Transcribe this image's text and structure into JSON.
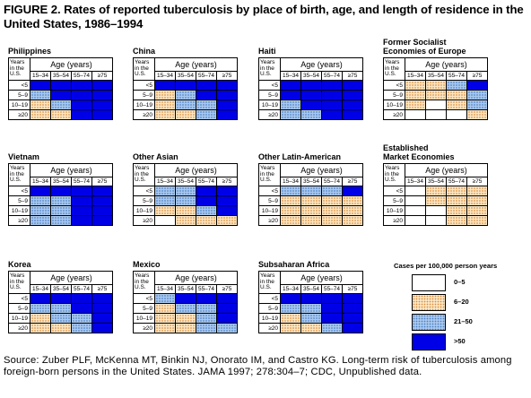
{
  "title": "FIGURE 2. Rates of reported tuberculosis by place of birth, age, and length of residence in the United States, 1986–1994",
  "source": "Source: Zuber PLF, McKenna MT, Binkin NJ, Onorato IM, and Castro KG. Long-term risk of tuberculosis among foreign-born persons in the United States. JAMA 1997; 278:304–7; CDC, Unpublished data.",
  "labels": {
    "years_in_us": "Years in the U.S.",
    "age_header": "Age (years)",
    "age_groups": [
      "15–34",
      "35–54",
      "55–74",
      "≥75"
    ],
    "residence_groups": [
      "<5",
      "5–9",
      "10–19",
      "≥20"
    ]
  },
  "legend": {
    "title": "Cases per 100,000 person years",
    "items": [
      {
        "label": "0–5",
        "level": 0
      },
      {
        "label": "6–20",
        "level": 1
      },
      {
        "label": "21–50",
        "level": 2
      },
      {
        "label": ">50",
        "level": 3
      }
    ]
  },
  "colors": {
    "level_0": "#ffffff",
    "level_1": "#fbe6c4",
    "level_2": "#a9c8ee",
    "level_3": "#0000e6"
  },
  "chart_data": {
    "type": "heatmap",
    "x": [
      "15–34",
      "35–54",
      "55–74",
      "≥75"
    ],
    "y": [
      "<5",
      "5–9",
      "10–19",
      "≥20"
    ],
    "xlabel": "Age (years)",
    "ylabel": "Years in the U.S.",
    "levels": [
      "0–5",
      "6–20",
      "21–50",
      ">50"
    ],
    "panels": [
      {
        "name": "Philippines",
        "values": [
          [
            3,
            3,
            3,
            3
          ],
          [
            2,
            3,
            3,
            3
          ],
          [
            1,
            2,
            3,
            3
          ],
          [
            1,
            1,
            3,
            3
          ]
        ]
      },
      {
        "name": "China",
        "values": [
          [
            3,
            3,
            3,
            3
          ],
          [
            1,
            2,
            3,
            3
          ],
          [
            1,
            2,
            2,
            3
          ],
          [
            1,
            1,
            2,
            3
          ]
        ]
      },
      {
        "name": "Haiti",
        "values": [
          [
            3,
            3,
            3,
            3
          ],
          [
            3,
            3,
            3,
            3
          ],
          [
            2,
            3,
            3,
            3
          ],
          [
            2,
            2,
            3,
            3
          ]
        ]
      },
      {
        "name": "Former Socialist\nEconomies of Europe",
        "values": [
          [
            1,
            1,
            2,
            3
          ],
          [
            1,
            1,
            1,
            2
          ],
          [
            1,
            0,
            1,
            2
          ],
          [
            0,
            0,
            0,
            1
          ]
        ]
      },
      {
        "name": "Vietnam",
        "values": [
          [
            3,
            3,
            3,
            3
          ],
          [
            2,
            2,
            3,
            3
          ],
          [
            2,
            2,
            3,
            3
          ],
          [
            2,
            2,
            3,
            3
          ]
        ]
      },
      {
        "name": "Other Asian",
        "values": [
          [
            2,
            2,
            3,
            3
          ],
          [
            2,
            2,
            3,
            3
          ],
          [
            1,
            1,
            2,
            3
          ],
          [
            0,
            1,
            1,
            1
          ]
        ]
      },
      {
        "name": "Other Latin-American",
        "values": [
          [
            2,
            2,
            2,
            3
          ],
          [
            1,
            1,
            1,
            1
          ],
          [
            1,
            1,
            1,
            1
          ],
          [
            1,
            1,
            1,
            1
          ]
        ]
      },
      {
        "name": "Established\nMarket Economies",
        "values": [
          [
            0,
            1,
            1,
            1
          ],
          [
            0,
            1,
            1,
            1
          ],
          [
            0,
            0,
            1,
            1
          ],
          [
            0,
            0,
            1,
            1
          ]
        ]
      },
      {
        "name": "Korea",
        "values": [
          [
            3,
            3,
            3,
            3
          ],
          [
            2,
            2,
            3,
            3
          ],
          [
            1,
            2,
            2,
            3
          ],
          [
            1,
            1,
            2,
            3
          ]
        ]
      },
      {
        "name": "Mexico",
        "values": [
          [
            2,
            3,
            3,
            3
          ],
          [
            1,
            2,
            2,
            3
          ],
          [
            1,
            1,
            2,
            3
          ],
          [
            1,
            1,
            2,
            2
          ]
        ]
      },
      {
        "name": "Subsaharan Africa",
        "values": [
          [
            3,
            3,
            3,
            3
          ],
          [
            2,
            2,
            3,
            3
          ],
          [
            1,
            2,
            3,
            3
          ],
          [
            1,
            1,
            2,
            3
          ]
        ]
      }
    ]
  }
}
